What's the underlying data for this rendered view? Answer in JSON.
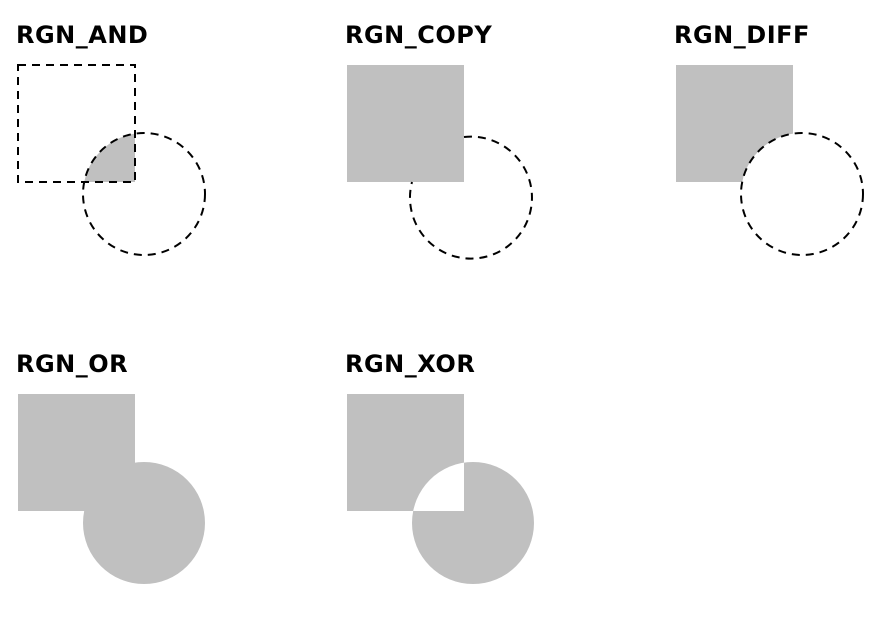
{
  "colors": {
    "background": "#ffffff",
    "region_fill": "#c0c0c0",
    "outline": "#000000",
    "label": "#000000"
  },
  "panels": [
    {
      "id": "and",
      "label": "RGN_AND",
      "operation": "intersection"
    },
    {
      "id": "copy",
      "label": "RGN_COPY",
      "operation": "copy"
    },
    {
      "id": "diff",
      "label": "RGN_DIFF",
      "operation": "difference"
    },
    {
      "id": "or",
      "label": "RGN_OR",
      "operation": "union"
    },
    {
      "id": "xor",
      "label": "RGN_XOR",
      "operation": "exclusive-or"
    }
  ]
}
